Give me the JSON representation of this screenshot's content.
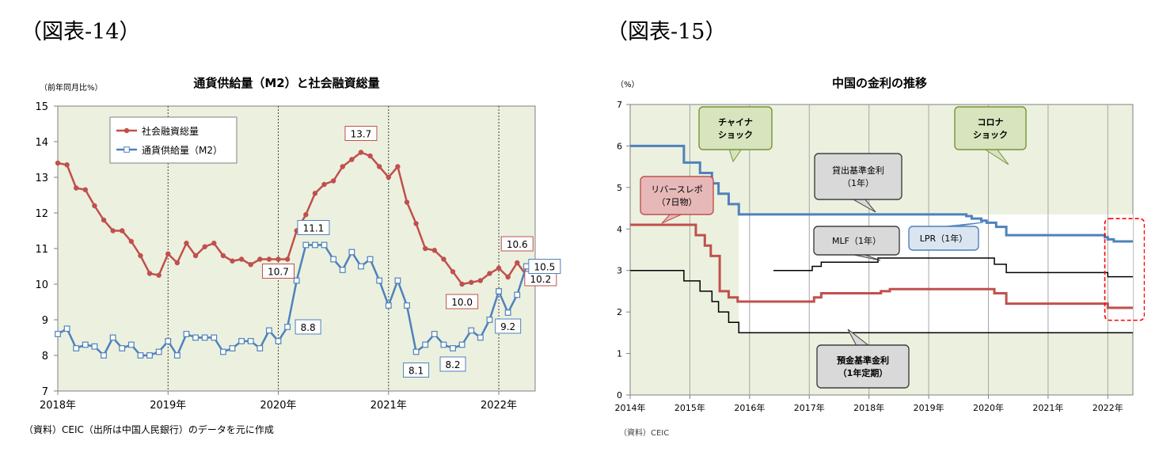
{
  "figures": [
    {
      "label": "（図表-14）"
    },
    {
      "label": "（図表-15）"
    }
  ],
  "chart_data": [
    {
      "type": "line",
      "title": "通貨供給量（M2）と社会融資総量",
      "unit_label": "（前年同月比%）",
      "source": "（資料）CEIC（出所は中国人民銀行）のデータを元に作成",
      "ylim": [
        7,
        15
      ],
      "yticks": [
        "7",
        "8",
        "9",
        "10",
        "11",
        "12",
        "13",
        "14",
        "15"
      ],
      "xlim": [
        2018.0,
        2022.33
      ],
      "xticks": [
        "2018年",
        "2019年",
        "2020年",
        "2021年",
        "2022年"
      ],
      "grid": false,
      "year_dividers": true,
      "background": "#ebf1de",
      "legend_position": "top-left",
      "series": [
        {
          "name": "社会融資総量",
          "color": "#c0504d",
          "marker": "circle",
          "x_start": "2018-01",
          "values": [
            13.4,
            13.35,
            12.7,
            12.65,
            12.2,
            11.8,
            11.5,
            11.5,
            11.2,
            10.8,
            10.3,
            10.25,
            10.85,
            10.6,
            11.15,
            10.8,
            11.05,
            11.15,
            10.8,
            10.65,
            10.7,
            10.55,
            10.7,
            10.7,
            10.7,
            10.7,
            11.5,
            11.95,
            12.55,
            12.8,
            12.9,
            13.3,
            13.5,
            13.7,
            13.6,
            13.3,
            13.0,
            13.3,
            12.3,
            11.7,
            11.0,
            10.95,
            10.7,
            10.35,
            10.0,
            10.05,
            10.1,
            10.3,
            10.45,
            10.2,
            10.6,
            10.25
          ]
        },
        {
          "name": "通貨供給量（M2）",
          "color": "#4f81bd",
          "marker": "square",
          "x_start": "2018-01",
          "values": [
            8.6,
            8.75,
            8.2,
            8.3,
            8.25,
            8.0,
            8.5,
            8.2,
            8.3,
            8.0,
            8.0,
            8.1,
            8.4,
            8.0,
            8.6,
            8.5,
            8.5,
            8.5,
            8.1,
            8.2,
            8.4,
            8.4,
            8.2,
            8.7,
            8.4,
            8.8,
            10.1,
            11.1,
            11.1,
            11.1,
            10.7,
            10.4,
            10.9,
            10.5,
            10.7,
            10.1,
            9.4,
            10.1,
            9.4,
            8.1,
            8.3,
            8.6,
            8.3,
            8.2,
            8.3,
            8.7,
            8.5,
            9.0,
            9.8,
            9.2,
            9.7,
            10.5
          ]
        }
      ],
      "annotations": [
        {
          "text": "13.7",
          "x": "2020-10",
          "y": 13.7,
          "series": "社会融資総量"
        },
        {
          "text": "10.7",
          "x": "2020-01",
          "y": 10.7,
          "series": "社会融資総量"
        },
        {
          "text": "10.0",
          "x": "2021-09",
          "y": 10.0,
          "series": "社会融資総量"
        },
        {
          "text": "10.6",
          "x": "2022-03",
          "y": 10.6,
          "series": "社会融資総量"
        },
        {
          "text": "10.2",
          "x": "2022-04",
          "y": 10.2,
          "series": "社会融資総量"
        },
        {
          "text": "11.1",
          "x": "2020-05",
          "y": 11.1,
          "series": "通貨供給量（M2）"
        },
        {
          "text": "8.8",
          "x": "2020-02",
          "y": 8.8,
          "series": "通貨供給量（M2）"
        },
        {
          "text": "8.1",
          "x": "2021-04",
          "y": 8.1,
          "series": "通貨供給量（M2）"
        },
        {
          "text": "8.2",
          "x": "2021-08",
          "y": 8.2,
          "series": "通貨供給量（M2）"
        },
        {
          "text": "9.2",
          "x": "2022-02",
          "y": 9.2,
          "series": "通貨供給量（M2）"
        },
        {
          "text": "10.5",
          "x": "2022-04",
          "y": 10.5,
          "series": "通貨供給量（M2）"
        }
      ]
    },
    {
      "type": "line",
      "title": "中国の金利の推移",
      "unit_label": "（%）",
      "source": "（資料）CEIC",
      "ylim": [
        0,
        7
      ],
      "yticks": [
        "0",
        "1",
        "2",
        "3",
        "4",
        "5",
        "6",
        "7"
      ],
      "xlim": [
        2014.0,
        2022.42
      ],
      "xticks": [
        "2014年",
        "2015年",
        "2016年",
        "2017年",
        "2018年",
        "2019年",
        "2020年",
        "2021年",
        "2022年"
      ],
      "year_dividers": true,
      "background": "#ebf1de",
      "series": [
        {
          "name": "貸出基準金利（1年）",
          "color": "#4f81bd",
          "steps": [
            [
              2014.0,
              6.0
            ],
            [
              2014.9,
              5.6
            ],
            [
              2015.17,
              5.35
            ],
            [
              2015.37,
              5.1
            ],
            [
              2015.48,
              4.85
            ],
            [
              2015.65,
              4.6
            ],
            [
              2015.82,
              4.35
            ],
            [
              2019.63,
              4.31
            ],
            [
              2019.72,
              4.25
            ],
            [
              2019.88,
              4.2
            ],
            [
              2019.97,
              4.15
            ],
            [
              2020.13,
              4.05
            ],
            [
              2020.3,
              3.85
            ],
            [
              2021.95,
              3.8
            ],
            [
              2022.0,
              3.75
            ],
            [
              2022.1,
              3.7
            ],
            [
              2022.42,
              3.7
            ]
          ]
        },
        {
          "name": "リバースレポ（7日物）",
          "color": "#c0504d",
          "steps": [
            [
              2014.0,
              4.1
            ],
            [
              2015.1,
              3.85
            ],
            [
              2015.25,
              3.6
            ],
            [
              2015.35,
              3.35
            ],
            [
              2015.5,
              2.5
            ],
            [
              2015.65,
              2.35
            ],
            [
              2015.8,
              2.25
            ],
            [
              2017.08,
              2.35
            ],
            [
              2017.2,
              2.45
            ],
            [
              2018.2,
              2.5
            ],
            [
              2018.35,
              2.55
            ],
            [
              2020.1,
              2.45
            ],
            [
              2020.3,
              2.2
            ],
            [
              2022.0,
              2.1
            ],
            [
              2022.42,
              2.1
            ]
          ]
        },
        {
          "name": "MLF（1年）",
          "color": "#000000",
          "steps": [
            [
              2016.4,
              3.0
            ],
            [
              2017.05,
              3.1
            ],
            [
              2017.2,
              3.2
            ],
            [
              2018.15,
              3.3
            ],
            [
              2020.1,
              3.15
            ],
            [
              2020.3,
              2.95
            ],
            [
              2022.0,
              2.85
            ],
            [
              2022.42,
              2.85
            ]
          ]
        },
        {
          "name": "預金基準金利（1年定期）",
          "color": "#000000",
          "steps": [
            [
              2014.0,
              3.0
            ],
            [
              2014.9,
              2.75
            ],
            [
              2015.17,
              2.5
            ],
            [
              2015.37,
              2.25
            ],
            [
              2015.48,
              2.0
            ],
            [
              2015.65,
              1.75
            ],
            [
              2015.82,
              1.5
            ],
            [
              2022.42,
              1.5
            ]
          ]
        }
      ],
      "callouts": [
        {
          "text": "チャイナ\nショック",
          "style": "green"
        },
        {
          "text": "コロナ\nショック",
          "style": "green"
        },
        {
          "text": "貸出基準金利\n（1年）",
          "style": "gray"
        },
        {
          "text": "リバースレポ\n（7日物）",
          "style": "red"
        },
        {
          "text": "MLF（1年）",
          "style": "gray"
        },
        {
          "text": "LPR（1年）",
          "style": "blue"
        },
        {
          "text": "預金基準金利\n（1年定期）",
          "style": "gray"
        }
      ]
    }
  ]
}
